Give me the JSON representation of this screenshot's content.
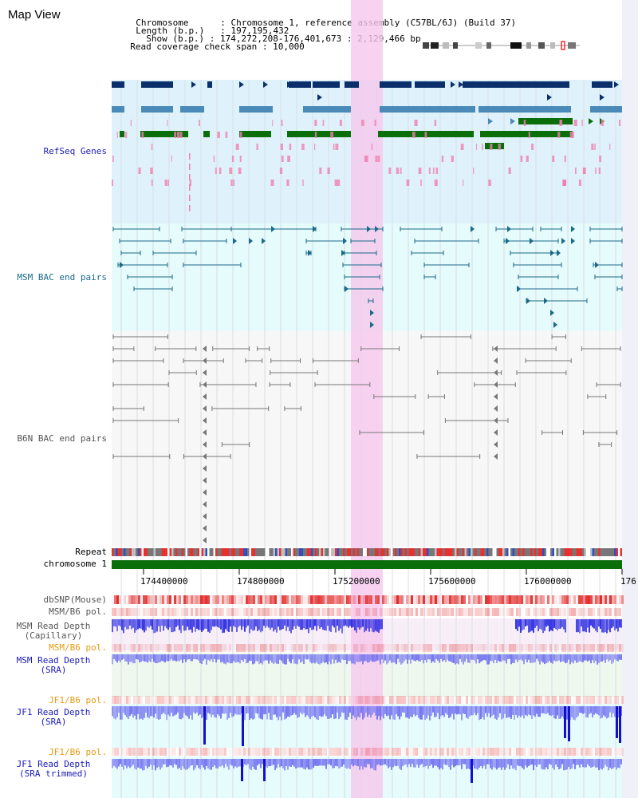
{
  "title": "Map View",
  "info": {
    "chromosome_label": "Chromosome",
    "chromosome_value": ": Chromosome 1, reference assembly (C57BL/6J) (Build 37)",
    "length_label": "Length (b.p.)",
    "length_value": ": 197,195,432",
    "show_label": "Show (b.p.)",
    "show_value": ": 174,272,208-176,401,673 : 2,129,466 bp",
    "read_coverage_label": "Read coverage check span",
    "read_coverage_value": ": 10,000"
  },
  "tracks": {
    "refseq": "RefSeq Genes",
    "msm_bac": "MSM BAC end pairs",
    "b6n_bac": "B6N BAC end pairs",
    "repeat": "Repeat",
    "chromosome": "chromosome 1",
    "dbsnp": "dbSNP(Mouse)",
    "msm_b6_pol": "MSM/B6 pol.",
    "msm_depth_cap_1": "MSM Read Depth",
    "msm_depth_cap_2": "(Capillary)",
    "msm_b6_pol_2": "MSM/B6 pol.",
    "msm_depth_sra_1": "MSM Read Depth",
    "msm_depth_sra_2": "(SRA)",
    "jf1_b6_pol": "JF1/B6 pol.",
    "jf1_depth_sra_1": "JF1 Read Depth",
    "jf1_depth_sra_2": "(SRA)",
    "jf1_b6_pol_2": "JF1/B6 pol.",
    "jf1_depth_trim_1": "JF1 Read Depth",
    "jf1_depth_trim_2": "(SRA trimmed)"
  },
  "ticks": [
    "174400000",
    "174800000",
    "175200000",
    "175600000",
    "176000000",
    "176"
  ],
  "colors": {
    "refseq_dark": "#0a2f6b",
    "refseq_mid": "#4a8ab8",
    "refseq_green": "#0a6e0a",
    "pink": "#f080b0",
    "msm_line": "#1a6a8a",
    "b6n_line": "#777777",
    "highlight": "#f6c8ee",
    "chromosome": "#0a6e0a",
    "depth_blue": "#2020e0",
    "pol_red": "#e02020"
  }
}
